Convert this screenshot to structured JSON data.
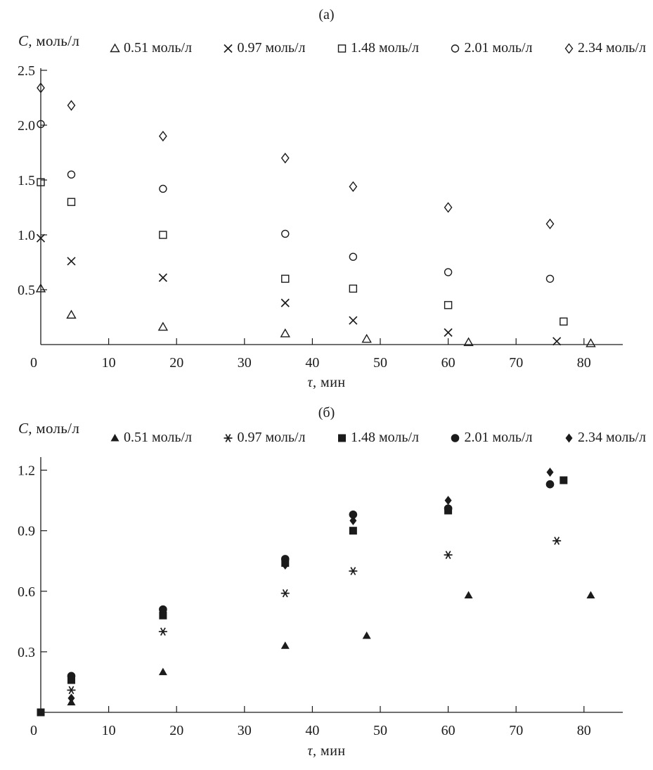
{
  "ink": "#1b1b1b",
  "background": "#ffffff",
  "chart_data": [
    {
      "type": "scatter",
      "title": "(а)",
      "xlabel": "τ, мин",
      "ylabel": "C, моль/л",
      "xlim": [
        0,
        85
      ],
      "ylim": [
        0,
        2.6
      ],
      "grid": false,
      "legend_position": "top",
      "xticks": [
        {
          "value": 0,
          "label": "0"
        },
        {
          "value": 10,
          "label": "10"
        },
        {
          "value": 20,
          "label": "20"
        },
        {
          "value": 30,
          "label": "30"
        },
        {
          "value": 40,
          "label": "40"
        },
        {
          "value": 50,
          "label": "50"
        },
        {
          "value": 60,
          "label": "60"
        },
        {
          "value": 70,
          "label": "70"
        },
        {
          "value": 80,
          "label": "80"
        }
      ],
      "yticks": [
        {
          "value": 0.5,
          "label": "0.5"
        },
        {
          "value": 1.0,
          "label": "1.0"
        },
        {
          "value": 1.5,
          "label": "1.5"
        },
        {
          "value": 2.0,
          "label": "2.0"
        },
        {
          "value": 2.5,
          "label": "2.5"
        }
      ],
      "series": [
        {
          "name": "0.51 моль/л",
          "marker": "triangle-open",
          "points": [
            [
              0,
              0.51
            ],
            [
              4.5,
              0.27
            ],
            [
              18,
              0.16
            ],
            [
              36,
              0.1
            ],
            [
              48,
              0.05
            ],
            [
              63,
              0.02
            ],
            [
              81,
              0.01
            ]
          ]
        },
        {
          "name": "0.97 моль/л",
          "marker": "x",
          "points": [
            [
              0,
              0.97
            ],
            [
              4.5,
              0.76
            ],
            [
              18,
              0.61
            ],
            [
              36,
              0.38
            ],
            [
              46,
              0.22
            ],
            [
              60,
              0.11
            ],
            [
              76,
              0.03
            ]
          ]
        },
        {
          "name": "1.48 моль/л",
          "marker": "square-open",
          "points": [
            [
              0,
              1.48
            ],
            [
              4.5,
              1.3
            ],
            [
              18,
              1.0
            ],
            [
              36,
              0.6
            ],
            [
              46,
              0.51
            ],
            [
              60,
              0.36
            ],
            [
              77,
              0.21
            ]
          ]
        },
        {
          "name": "2.01 моль/л",
          "marker": "circle-open",
          "points": [
            [
              0,
              2.01
            ],
            [
              4.5,
              1.55
            ],
            [
              18,
              1.42
            ],
            [
              36,
              1.01
            ],
            [
              46,
              0.8
            ],
            [
              60,
              0.66
            ],
            [
              75,
              0.6
            ]
          ]
        },
        {
          "name": "2.34 моль/л",
          "marker": "diamond-open",
          "points": [
            [
              0,
              2.34
            ],
            [
              4.5,
              2.18
            ],
            [
              18,
              1.9
            ],
            [
              36,
              1.7
            ],
            [
              46,
              1.44
            ],
            [
              60,
              1.25
            ],
            [
              75,
              1.1
            ]
          ]
        }
      ]
    },
    {
      "type": "scatter",
      "title": "(б)",
      "xlabel": "τ, мин",
      "ylabel": "C, моль/л",
      "xlim": [
        0,
        85
      ],
      "ylim": [
        0,
        1.27
      ],
      "grid": false,
      "legend_position": "top",
      "xticks": [
        {
          "value": 0,
          "label": "0"
        },
        {
          "value": 10,
          "label": "10"
        },
        {
          "value": 20,
          "label": "20"
        },
        {
          "value": 30,
          "label": "30"
        },
        {
          "value": 40,
          "label": "40"
        },
        {
          "value": 50,
          "label": "50"
        },
        {
          "value": 60,
          "label": "60"
        },
        {
          "value": 70,
          "label": "70"
        },
        {
          "value": 80,
          "label": "80"
        }
      ],
      "yticks": [
        {
          "value": 0.3,
          "label": "0.3"
        },
        {
          "value": 0.6,
          "label": "0.6"
        },
        {
          "value": 0.9,
          "label": "0.9"
        },
        {
          "value": 1.2,
          "label": "1.2"
        }
      ],
      "series": [
        {
          "name": "0.51 моль/л",
          "marker": "triangle-filled",
          "points": [
            [
              4.5,
              0.05
            ],
            [
              18,
              0.2
            ],
            [
              36,
              0.33
            ],
            [
              48,
              0.38
            ],
            [
              63,
              0.58
            ],
            [
              81,
              0.58
            ]
          ]
        },
        {
          "name": "0.97 моль/л",
          "marker": "star",
          "points": [
            [
              4.5,
              0.11
            ],
            [
              18,
              0.4
            ],
            [
              36,
              0.59
            ],
            [
              46,
              0.7
            ],
            [
              60,
              0.78
            ],
            [
              76,
              0.85
            ]
          ]
        },
        {
          "name": "1.48 моль/л",
          "marker": "square-filled",
          "points": [
            [
              0,
              0.0
            ],
            [
              4.5,
              0.16
            ],
            [
              18,
              0.48
            ],
            [
              36,
              0.74
            ],
            [
              46,
              0.9
            ],
            [
              60,
              1.0
            ],
            [
              77,
              1.15
            ]
          ]
        },
        {
          "name": "2.01 моль/л",
          "marker": "circle-filled",
          "points": [
            [
              4.5,
              0.18
            ],
            [
              18,
              0.51
            ],
            [
              36,
              0.76
            ],
            [
              46,
              0.98
            ],
            [
              60,
              1.01
            ],
            [
              75,
              1.13
            ]
          ]
        },
        {
          "name": "2.34 моль/л",
          "marker": "diamond-filled",
          "points": [
            [
              4.5,
              0.07
            ],
            [
              18,
              0.5
            ],
            [
              36,
              0.73
            ],
            [
              46,
              0.95
            ],
            [
              60,
              1.05
            ],
            [
              75,
              1.19
            ]
          ]
        }
      ]
    }
  ]
}
